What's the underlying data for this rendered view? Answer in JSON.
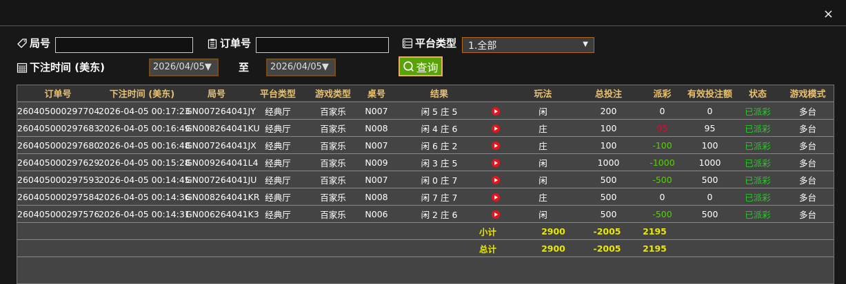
{
  "close_label": "×",
  "filters": {
    "round_label": "局号",
    "round_value": "",
    "order_label": "订单号",
    "order_value": "",
    "platform_label": "平台类型",
    "platform_value": "1.全部",
    "time_label": "下注时间 (美东)",
    "date_from": "2026/04/05▼",
    "to_label": "至",
    "date_to": "2026/04/05▼",
    "query_label": "查询"
  },
  "table": {
    "headers": [
      "订单号",
      "下注时间 (美东)",
      "局号",
      "平台类型",
      "游戏类型",
      "桌号",
      "结果",
      "",
      "玩法",
      "总投注",
      "派彩",
      "有效投注额",
      "状态",
      "游戏模式"
    ],
    "rows": [
      {
        "order": "260405000297704",
        "time": "2026-04-05 00:17:23",
        "round": "GN007264041JY",
        "platform": "经典厅",
        "game": "百家乐",
        "table": "N007",
        "result": "闲 5 庄 5",
        "play": "闲",
        "bet": "200",
        "payout": "0",
        "payout_color": "white",
        "valid": "0",
        "status": "已派彩",
        "mode": "多台"
      },
      {
        "order": "260405000297683",
        "time": "2026-04-05 00:16:49",
        "round": "GN008264041KU",
        "platform": "经典厅",
        "game": "百家乐",
        "table": "N008",
        "result": "闲 4 庄 6",
        "play": "庄",
        "bet": "100",
        "payout": "95",
        "payout_color": "red",
        "valid": "95",
        "status": "已派彩",
        "mode": "多台"
      },
      {
        "order": "260405000297680",
        "time": "2026-04-05 00:16:48",
        "round": "GN007264041JX",
        "platform": "经典厅",
        "game": "百家乐",
        "table": "N007",
        "result": "闲 6 庄 2",
        "play": "庄",
        "bet": "100",
        "payout": "-100",
        "payout_color": "green",
        "valid": "100",
        "status": "已派彩",
        "mode": "多台"
      },
      {
        "order": "260405000297629",
        "time": "2026-04-05 00:15:28",
        "round": "GN009264041L4",
        "platform": "经典厅",
        "game": "百家乐",
        "table": "N009",
        "result": "闲 3 庄 5",
        "play": "闲",
        "bet": "1000",
        "payout": "-1000",
        "payout_color": "green",
        "valid": "1000",
        "status": "已派彩",
        "mode": "多台"
      },
      {
        "order": "260405000297593",
        "time": "2026-04-05 00:14:45",
        "round": "GN007264041JU",
        "platform": "经典厅",
        "game": "百家乐",
        "table": "N007",
        "result": "闲 0 庄 7",
        "play": "闲",
        "bet": "500",
        "payout": "-500",
        "payout_color": "green",
        "valid": "500",
        "status": "已派彩",
        "mode": "多台"
      },
      {
        "order": "260405000297584",
        "time": "2026-04-05 00:14:36",
        "round": "GN008264041KR",
        "platform": "经典厅",
        "game": "百家乐",
        "table": "N008",
        "result": "闲 7 庄 7",
        "play": "庄",
        "bet": "500",
        "payout": "0",
        "payout_color": "white",
        "valid": "0",
        "status": "已派彩",
        "mode": "多台"
      },
      {
        "order": "260405000297576",
        "time": "2026-04-05 00:14:31",
        "round": "GN006264041K3",
        "platform": "经典厅",
        "game": "百家乐",
        "table": "N006",
        "result": "闲 2 庄 6",
        "play": "闲",
        "bet": "500",
        "payout": "-500",
        "payout_color": "green",
        "valid": "500",
        "status": "已派彩",
        "mode": "多台"
      }
    ],
    "subtotal": {
      "label": "小计",
      "bet": "2900",
      "payout": "-2005",
      "valid": "2195"
    },
    "total": {
      "label": "总计",
      "bet": "2900",
      "payout": "-2005",
      "valid": "2195"
    }
  },
  "colors": {
    "accent_border": "#b8681c",
    "query_bg": "#5aa20a",
    "header_text": "#e8c070",
    "status_green": "#22d022",
    "sum_yellow": "#e8e800"
  }
}
